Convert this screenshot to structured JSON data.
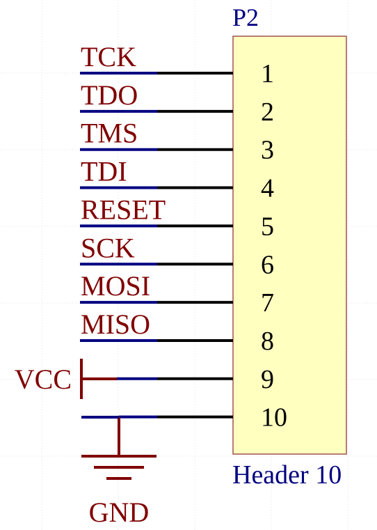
{
  "component": {
    "designator": "P2",
    "comment": "Header 10",
    "body_fill": "#ffffc0",
    "body_stroke": "#a05050"
  },
  "pins": [
    {
      "number": "1",
      "net": "TCK"
    },
    {
      "number": "2",
      "net": "TDO"
    },
    {
      "number": "3",
      "net": "TMS"
    },
    {
      "number": "4",
      "net": "TDI"
    },
    {
      "number": "5",
      "net": "RESET"
    },
    {
      "number": "6",
      "net": "SCK"
    },
    {
      "number": "7",
      "net": "MOSI"
    },
    {
      "number": "8",
      "net": "MISO"
    },
    {
      "number": "9",
      "net": "VCC"
    },
    {
      "number": "10",
      "net": "GND"
    }
  ],
  "power_ports": {
    "vcc_label": "VCC",
    "gnd_label": "GND"
  },
  "colors": {
    "net_label": "#800000",
    "wire": "#000080",
    "pin_line": "#000000",
    "designator_text": "#000080",
    "pin_number_text": "#000000",
    "power_symbol": "#800000"
  }
}
